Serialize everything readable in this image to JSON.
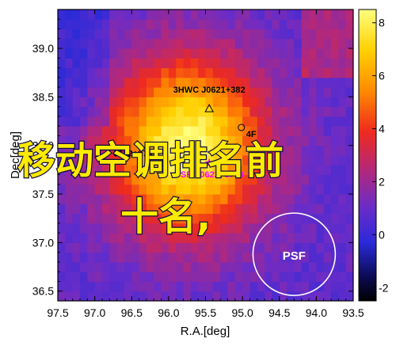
{
  "chart_data": {
    "type": "heatmap",
    "xlabel": "R.A.[deg]",
    "ylabel": "Dec[deg]",
    "xlim": [
      97.5,
      93.5
    ],
    "ylim": [
      36.4,
      39.4
    ],
    "x_ticks": [
      "97.5",
      "97.0",
      "96.5",
      "96.0",
      "95.5",
      "95.0",
      "94.5",
      "94.0",
      "93.5"
    ],
    "y_ticks": [
      "36.5",
      "37.0",
      "37.5",
      "38.0",
      "38.5",
      "39.0"
    ],
    "colorbar": {
      "range": [
        -2.5,
        8.5
      ],
      "ticks": [
        "8",
        "6",
        "4",
        "2",
        "0",
        "-2"
      ]
    },
    "peak": {
      "ra": 95.8,
      "dec": 37.95,
      "value": 8
    },
    "sources": [
      {
        "label": "3HWC J0621+382",
        "ra": 95.45,
        "dec": 38.38,
        "marker": "triangle",
        "color": "#000000"
      },
      {
        "label": "PSR J0622+3749",
        "ra": 95.45,
        "dec": 37.82,
        "marker": "star",
        "color": "#ff00ff"
      },
      {
        "label": "3622+3749",
        "ra": 96.45,
        "dec": 37.92,
        "marker": "none",
        "color": "#000000"
      },
      {
        "label": "4F",
        "ra": 94.95,
        "dec": 38.12,
        "marker": "circle",
        "color": "#000000"
      }
    ],
    "psf": {
      "label": "PSF",
      "ra": 94.3,
      "dec": 36.88
    }
  },
  "watermark": {
    "line1": "移动空调排名前",
    "line2": "十名,"
  }
}
